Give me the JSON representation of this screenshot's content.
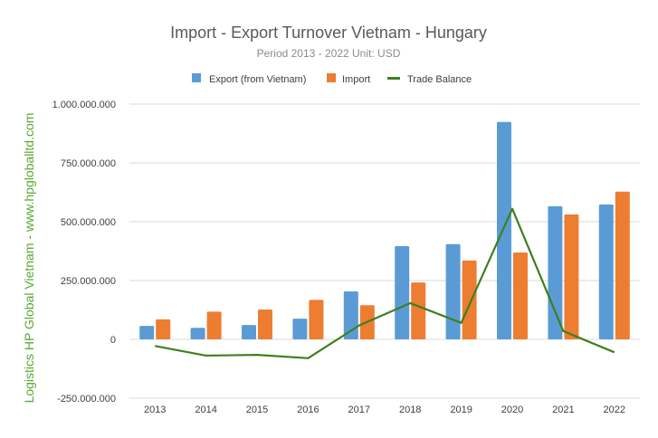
{
  "chart_data": {
    "type": "bar",
    "title": "Import - Export Turnover Vietnam - Hungary",
    "subtitle": "Period 2013 - 2022 Unit: USD",
    "watermark": "Logistics HP Global Vietnam - www.hpgloballtd.com",
    "categories": [
      "2013",
      "2014",
      "2015",
      "2016",
      "2017",
      "2018",
      "2019",
      "2020",
      "2021",
      "2022"
    ],
    "y_ticks": [
      {
        "value": 1000000000,
        "label": "1.000.000.000"
      },
      {
        "value": 750000000,
        "label": "750.000.000"
      },
      {
        "value": 500000000,
        "label": "500.000.000"
      },
      {
        "value": 250000000,
        "label": "250.000.000"
      },
      {
        "value": 0,
        "label": "0"
      },
      {
        "value": -250000000,
        "label": "-250.000.000"
      }
    ],
    "ylim": [
      -250000000,
      1000000000
    ],
    "grid": true,
    "legend_position": "top",
    "series": [
      {
        "name": "Export (from Vietnam)",
        "kind": "bar",
        "color": "#5b9bd5",
        "values": [
          57000000,
          49000000,
          61000000,
          88000000,
          204000000,
          396000000,
          405000000,
          924000000,
          566000000,
          573000000
        ]
      },
      {
        "name": "Import",
        "kind": "bar",
        "color": "#ed7d31",
        "values": [
          85000000,
          118000000,
          127000000,
          168000000,
          145000000,
          242000000,
          335000000,
          369000000,
          531000000,
          628000000
        ]
      },
      {
        "name": "Trade Balance",
        "kind": "line",
        "color": "#3f7f1f",
        "values": [
          -28000000,
          -69000000,
          -66000000,
          -80000000,
          59000000,
          154000000,
          70000000,
          555000000,
          35000000,
          -55000000
        ]
      }
    ]
  }
}
